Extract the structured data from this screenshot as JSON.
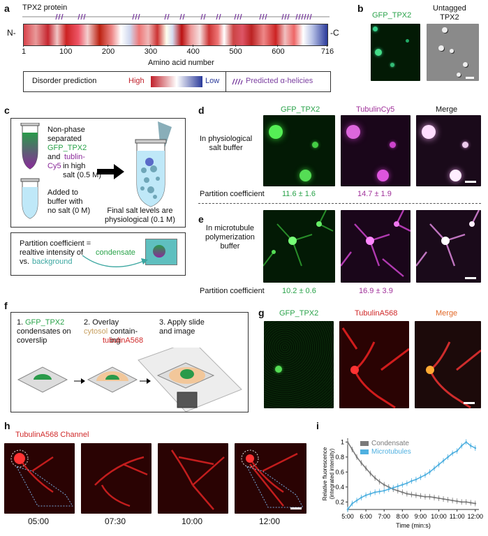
{
  "panels": {
    "a": "a",
    "b": "b",
    "c": "c",
    "d": "d",
    "e": "e",
    "f": "f",
    "g": "g",
    "h": "h",
    "i": "i"
  },
  "a": {
    "title": "TPX2 protein",
    "n_term": "N-",
    "c_term": "-C",
    "ticks": [
      "1",
      "100",
      "200",
      "300",
      "400",
      "500",
      "600",
      "716"
    ],
    "xlabel": "Amino acid number",
    "legend_disorder": "Disorder prediction",
    "legend_high": "High",
    "legend_low": "Low",
    "legend_helix": "Predicted α-helicies",
    "colors": {
      "high": "#c0202a",
      "low": "#2a3a9a",
      "helix": "#7b3fa0"
    }
  },
  "b": {
    "green_label": "GFP_TPX2",
    "untagged_label": "Untagged\nTPX2"
  },
  "c": {
    "tube1_text": "Non-phase\nseparated",
    "gfp": "GFP_TPX2",
    "and": "and",
    "tublin": "tublin-",
    "cy5": "Cy5",
    "high_salt": "in high\nsalt (0.5 M)",
    "added": "Added to\nbuffer with\nno salt (0 M)",
    "final": "Final salt levels are\nphysiological (0.1 M)",
    "pc_line1": "Partition coefficient =",
    "pc_line2": "realtive intensity of",
    "condensate": "condensate",
    "vs": "vs.",
    "background": "background"
  },
  "d": {
    "col1": "GFP_TPX2",
    "col2": "TubulinCy5",
    "col3": "Merge",
    "row_label": "In physiological\nsalt buffer",
    "pc_label": "Partition coefficient",
    "pc_green": "11.6 ± 1.6",
    "pc_mag": "14.7 ± 1.9"
  },
  "e": {
    "row_label": "In microtubule\npolymerization\nbuffer",
    "pc_label": "Partition coefficient",
    "pc_green": "10.2 ± 0.6",
    "pc_mag": "16.9 ± 3.9"
  },
  "f": {
    "step1_num": "1.",
    "step1_a": "GFP_TPX2",
    "step1_b": "condensates on\ncoverslip",
    "step2_a": "2. Overlay",
    "step2_b": "cytosol",
    "step2_c": "contain-\ning",
    "step2_d": "tubulinA568",
    "step3": "3. Apply slide\nand image"
  },
  "g": {
    "col1": "GFP_TPX2",
    "col2": "TubulinA568",
    "col3": "Merge"
  },
  "h": {
    "title": "TubulinA568 Channel",
    "times": [
      "05:00",
      "07:30",
      "10:00",
      "12:00"
    ]
  },
  "chart_data": {
    "type": "line",
    "xlabel": "Time (min:s)",
    "ylabel": "Relative fluorescence\n(integrated intensity)",
    "x_ticks": [
      "5:00",
      "6:00",
      "7:00",
      "8:00",
      "9:00",
      "10:00",
      "11:00",
      "12:00"
    ],
    "y_ticks": [
      "0.2",
      "0.4",
      "0.6",
      "0.8",
      "1"
    ],
    "ylim": [
      0.1,
      1.05
    ],
    "xlim": [
      5,
      12.2
    ],
    "series": [
      {
        "name": "Condensate",
        "color": "#7a7a7a",
        "x": [
          5.0,
          5.25,
          5.5,
          5.75,
          6.0,
          6.25,
          6.5,
          6.75,
          7.0,
          7.25,
          7.5,
          7.75,
          8.0,
          8.25,
          8.5,
          8.75,
          9.0,
          9.25,
          9.5,
          9.75,
          10.0,
          10.25,
          10.5,
          10.75,
          11.0,
          11.25,
          11.5,
          11.75,
          12.0
        ],
        "values": [
          1.0,
          0.9,
          0.8,
          0.72,
          0.65,
          0.58,
          0.52,
          0.47,
          0.43,
          0.4,
          0.37,
          0.35,
          0.33,
          0.31,
          0.3,
          0.29,
          0.28,
          0.27,
          0.27,
          0.26,
          0.25,
          0.24,
          0.23,
          0.22,
          0.21,
          0.2,
          0.2,
          0.19,
          0.18
        ]
      },
      {
        "name": "Microtubules",
        "color": "#4fb0e0",
        "x": [
          5.0,
          5.25,
          5.5,
          5.75,
          6.0,
          6.25,
          6.5,
          6.75,
          7.0,
          7.25,
          7.5,
          7.75,
          8.0,
          8.25,
          8.5,
          8.75,
          9.0,
          9.25,
          9.5,
          9.75,
          10.0,
          10.25,
          10.5,
          10.75,
          11.0,
          11.25,
          11.5,
          11.75,
          12.0
        ],
        "values": [
          0.1,
          0.18,
          0.22,
          0.26,
          0.29,
          0.31,
          0.33,
          0.34,
          0.35,
          0.37,
          0.39,
          0.41,
          0.43,
          0.45,
          0.48,
          0.5,
          0.53,
          0.56,
          0.6,
          0.65,
          0.7,
          0.75,
          0.8,
          0.85,
          0.88,
          0.95,
          1.0,
          0.95,
          0.92
        ]
      }
    ]
  }
}
